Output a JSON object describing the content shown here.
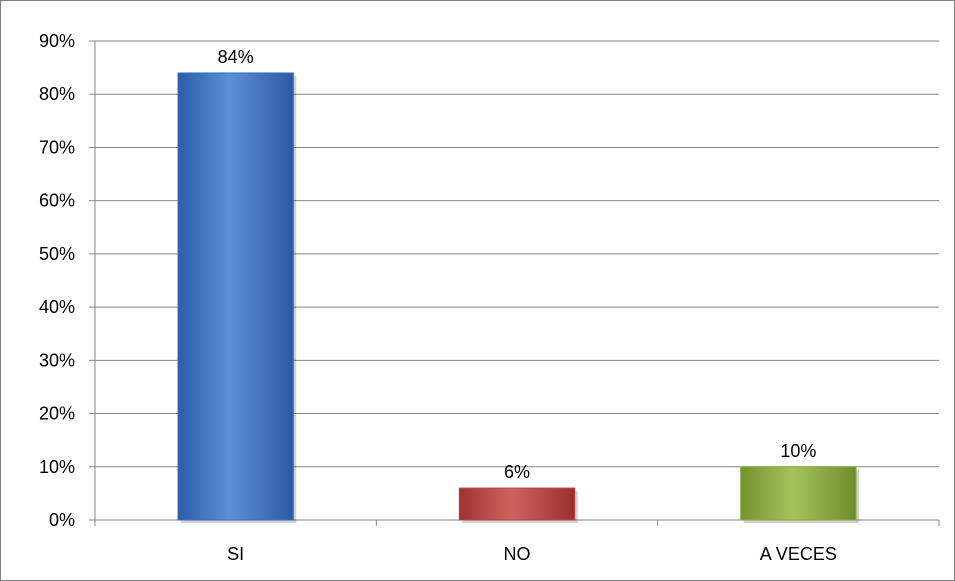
{
  "chart_data": {
    "type": "bar",
    "categories": [
      "SI",
      "NO",
      "A VECES"
    ],
    "values": [
      84,
      6,
      10
    ],
    "data_labels": [
      "84%",
      "6%",
      "10%"
    ],
    "y_ticks": [
      "0%",
      "10%",
      "20%",
      "30%",
      "40%",
      "50%",
      "60%",
      "70%",
      "80%",
      "90%"
    ],
    "ylim": [
      0,
      90
    ],
    "y_unit": "%",
    "grid": true,
    "legend": "none",
    "colors": [
      "#3b6fc0",
      "#b84340",
      "#8aaa3e"
    ],
    "title": "",
    "xlabel": "",
    "ylabel": ""
  }
}
